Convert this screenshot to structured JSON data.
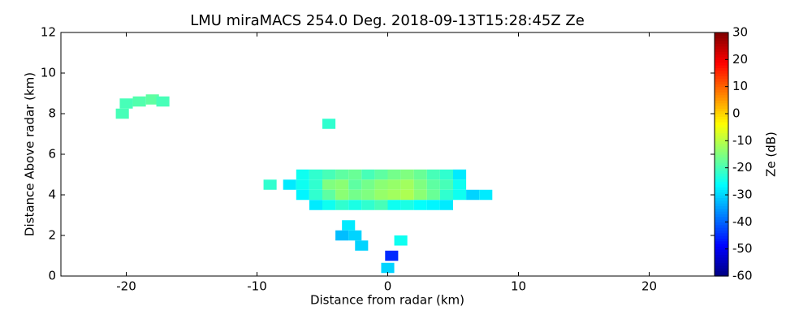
{
  "chart_data": {
    "type": "heatmap",
    "title": "LMU miraMACS 254.0 Deg. 2018-09-13T15:28:45Z  Ze",
    "x_label": "Distance from radar (km)",
    "y_label": "Distance Above radar  (km)",
    "colorbar_label": "Ze (dB)",
    "colormap": "jet",
    "xlim": [
      -25,
      25
    ],
    "xticks": [
      -20,
      -10,
      0,
      10,
      20
    ],
    "ylim": [
      0,
      12
    ],
    "yticks": [
      0,
      2,
      4,
      6,
      8,
      10,
      12
    ],
    "clim": [
      -60,
      30
    ],
    "cticks": [
      -60,
      -50,
      -40,
      -30,
      -20,
      -10,
      0,
      10,
      20,
      30
    ],
    "x": [
      -6.5,
      -5.5,
      -4.5,
      -3.5,
      -2.5,
      -1.5,
      -0.5,
      0.5,
      1.5,
      2.5,
      3.5,
      4.5,
      5.5,
      -7.5,
      -6.5,
      -5.5,
      -4.5,
      -3.5,
      -2.5,
      -1.5,
      -0.5,
      0.5,
      1.5,
      2.5,
      3.5,
      4.5,
      5.5,
      -6.5,
      -5.5,
      -4.5,
      -3.5,
      -2.5,
      -1.5,
      -0.5,
      0.5,
      1.5,
      2.5,
      3.5,
      4.5,
      5.5,
      6.5,
      -5.5,
      -4.5,
      -3.5,
      -2.5,
      -1.5,
      -0.5,
      0.5,
      1.5,
      2.5,
      3.5,
      4.5,
      7.5,
      -9,
      -20,
      -19,
      -18,
      -17.2,
      -20.3,
      -4.5,
      -3,
      -2.5,
      -3.5,
      -2,
      1,
      0.3,
      0
    ],
    "y": [
      5,
      5,
      5,
      5,
      5,
      5,
      5,
      5,
      5,
      5,
      5,
      5,
      5,
      4.5,
      4.5,
      4.5,
      4.5,
      4.5,
      4.5,
      4.5,
      4.5,
      4.5,
      4.5,
      4.5,
      4.5,
      4.5,
      4.5,
      4,
      4,
      4,
      4,
      4,
      4,
      4,
      4,
      4,
      4,
      4,
      4,
      4,
      4,
      3.5,
      3.5,
      3.5,
      3.5,
      3.5,
      3.5,
      3.5,
      3.5,
      3.5,
      3.5,
      3.5,
      4,
      4.5,
      8.5,
      8.6,
      8.7,
      8.6,
      8,
      7.5,
      2.5,
      2,
      2,
      1.5,
      1.75,
      1,
      0.4
    ],
    "values": [
      -25,
      -22,
      -20,
      -18,
      -17,
      -20,
      -18,
      -16,
      -15,
      -17,
      -20,
      -22,
      -28,
      -28,
      -25,
      -22,
      -15,
      -14,
      -18,
      -16,
      -14,
      -13,
      -12,
      -15,
      -18,
      -20,
      -25,
      -27,
      -22,
      -18,
      -14,
      -16,
      -15,
      -13,
      -12,
      -11,
      -14,
      -17,
      -22,
      -25,
      -30,
      -28,
      -25,
      -22,
      -24,
      -22,
      -20,
      -25,
      -24,
      -26,
      -27,
      -28,
      -28,
      -22,
      -20,
      -19,
      -18,
      -20,
      -20,
      -22,
      -28,
      -30,
      -32,
      -30,
      -25,
      -45,
      -30
    ]
  }
}
